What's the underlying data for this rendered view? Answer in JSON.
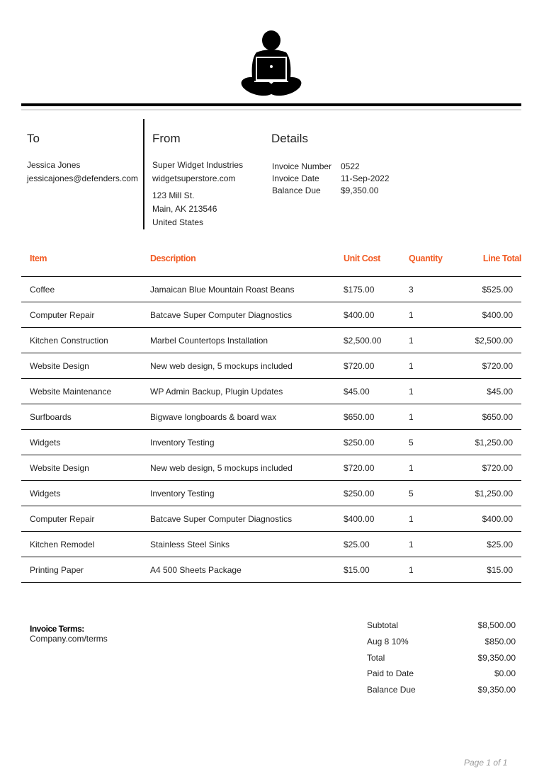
{
  "logo": {
    "icon": "person-with-laptop-icon"
  },
  "to": {
    "heading": "To",
    "name": "Jessica Jones",
    "email": "jessicajones@defenders.com"
  },
  "from": {
    "heading": "From",
    "company": "Super Widget Industries",
    "website": "widgetsuperstore.com",
    "address1": "123 Mill St.",
    "address2": "Main, AK 213546",
    "country": "United States"
  },
  "details": {
    "heading": "Details",
    "rows": [
      {
        "label": "Invoice Number",
        "value": "0522"
      },
      {
        "label": "Invoice Date",
        "value": "11-Sep-2022"
      },
      {
        "label": "Balance Due",
        "value": "$9,350.00"
      }
    ]
  },
  "table": {
    "accent": "#f25a22",
    "headers": [
      "Item",
      "Description",
      "Unit Cost",
      "Quantity",
      "Line Total"
    ],
    "rows": [
      [
        "Coffee",
        "Jamaican Blue Mountain Roast Beans",
        "$175.00",
        "3",
        "$525.00"
      ],
      [
        "Computer Repair",
        "Batcave Super Computer Diagnostics",
        "$400.00",
        "1",
        "$400.00"
      ],
      [
        "Kitchen Construction",
        "Marbel Countertops Installation",
        "$2,500.00",
        "1",
        "$2,500.00"
      ],
      [
        "Website Design",
        "New web design, 5 mockups included",
        "$720.00",
        "1",
        "$720.00"
      ],
      [
        "Website Maintenance",
        "WP Admin Backup, Plugin Updates",
        "$45.00",
        "1",
        "$45.00"
      ],
      [
        "Surfboards",
        "Bigwave longboards & board wax",
        "$650.00",
        "1",
        "$650.00"
      ],
      [
        "Widgets",
        "Inventory Testing",
        "$250.00",
        "5",
        "$1,250.00"
      ],
      [
        "Website Design",
        "New web design, 5 mockups included",
        "$720.00",
        "1",
        "$720.00"
      ],
      [
        "Widgets",
        "Inventory Testing",
        "$250.00",
        "5",
        "$1,250.00"
      ],
      [
        "Computer Repair",
        "Batcave Super Computer Diagnostics",
        "$400.00",
        "1",
        "$400.00"
      ],
      [
        "Kitchen Remodel",
        "Stainless Steel Sinks",
        "$25.00",
        "1",
        "$25.00"
      ],
      [
        "Printing Paper",
        "A4 500 Sheets Package",
        "$15.00",
        "1",
        "$15.00"
      ]
    ]
  },
  "terms": {
    "heading": "Invoice Terms:",
    "value": "Company.com/terms"
  },
  "summary": [
    {
      "label": "Subtotal",
      "value": "$8,500.00"
    },
    {
      "label": "Aug 8 10%",
      "value": "$850.00"
    },
    {
      "label": "Total",
      "value": "$9,350.00"
    },
    {
      "label": "Paid to Date",
      "value": "$0.00"
    },
    {
      "label": "Balance Due",
      "value": "$9,350.00"
    }
  ],
  "footer": {
    "page": "Page 1 of 1"
  }
}
